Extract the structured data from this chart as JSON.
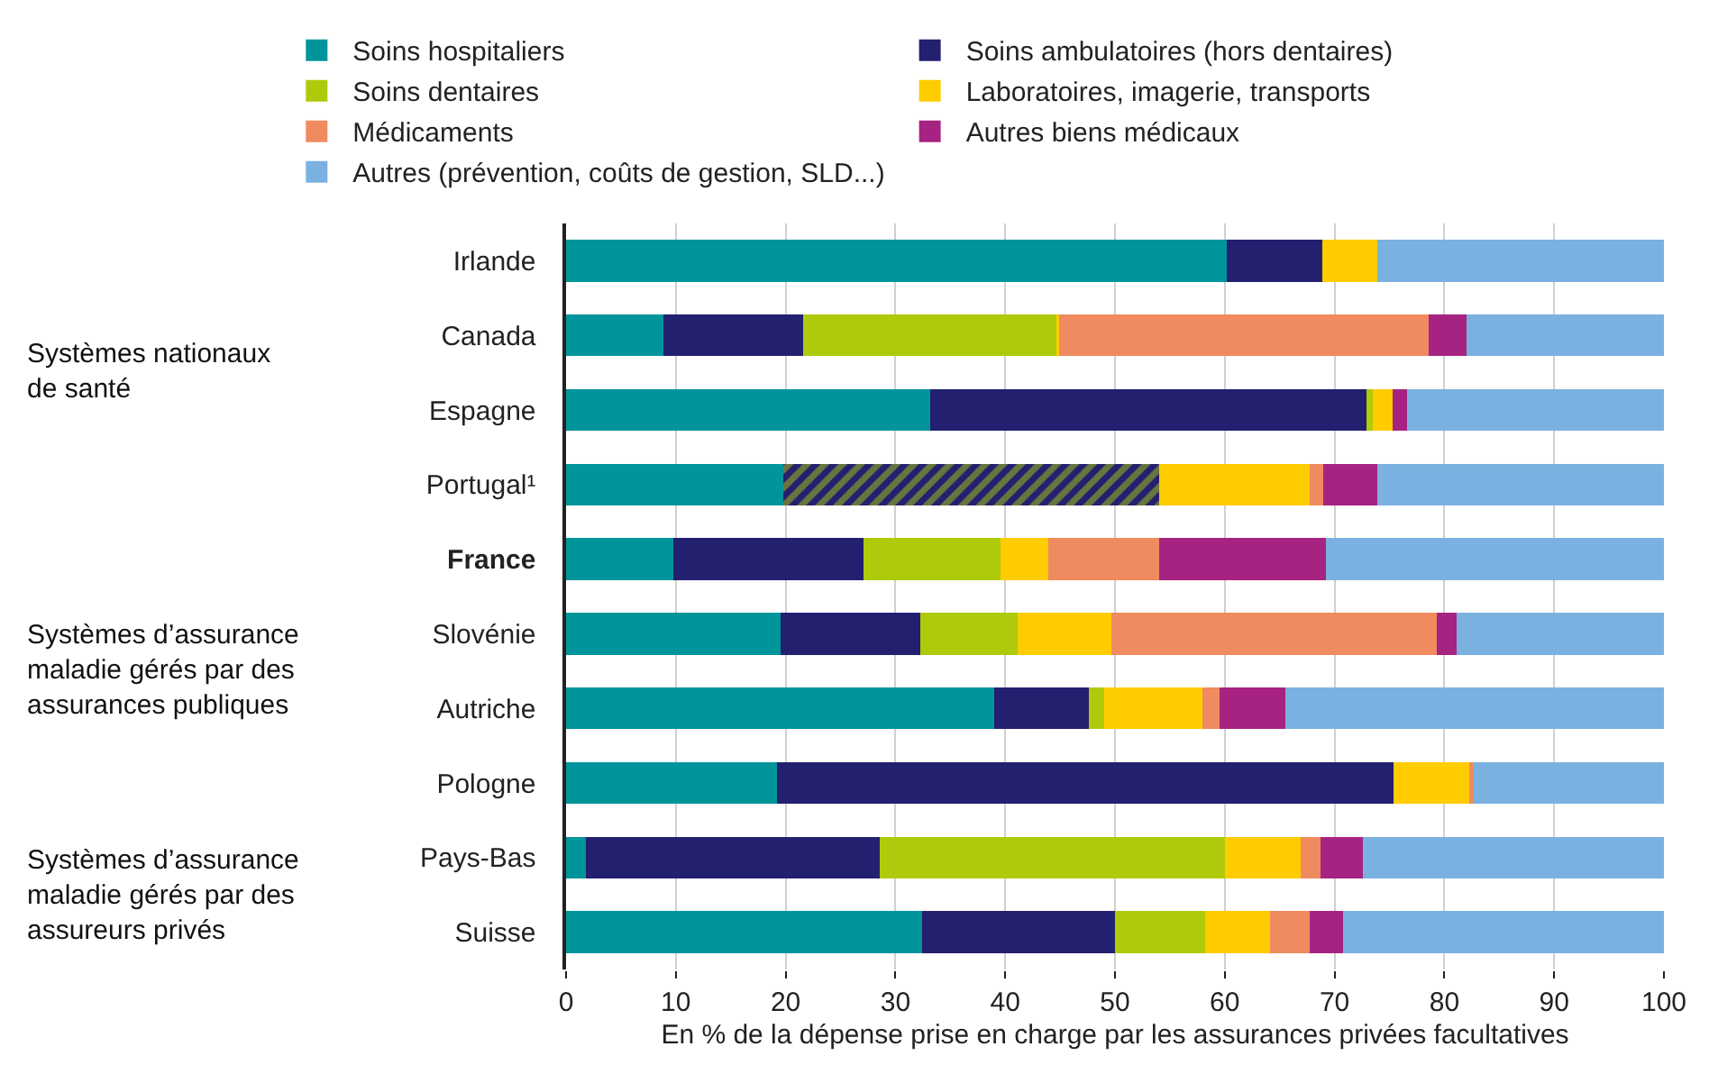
{
  "chart_data": {
    "type": "bar",
    "orientation": "horizontal",
    "stacked": true,
    "categories": [
      "Irlande",
      "Canada",
      "Espagne",
      "Portugal¹",
      "France",
      "Slovénie",
      "Autriche",
      "Pologne",
      "Pays-Bas",
      "Suisse"
    ],
    "series": [
      {
        "name": "Soins hospitaliers",
        "color": "#00959b",
        "values": [
          60.2,
          8.9,
          33.2,
          19.8,
          9.8,
          19.5,
          39.0,
          19.2,
          1.8,
          32.4
        ]
      },
      {
        "color": "#232070",
        "values": [
          null,
          null,
          null,
          34.2,
          null,
          null,
          null,
          null,
          null,
          null
        ]
      },
      {
        "name": "Soins ambulatoires (hors dentaires)",
        "color": "#232070",
        "values": [
          8.7,
          12.7,
          39.7,
          null,
          17.3,
          12.8,
          8.6,
          56.2,
          26.8,
          17.6
        ]
      },
      {
        "name": "Soins dentaires",
        "color": "#afca0b",
        "values": [
          0,
          23.1,
          0.6,
          null,
          12.5,
          8.8,
          1.4,
          0,
          31.4,
          8.2
        ]
      },
      {
        "name": "Laboratoires, imagerie, transports",
        "color": "#ffcc00",
        "values": [
          5.0,
          0.2,
          1.8,
          13.7,
          4.3,
          8.6,
          9.0,
          7.0,
          6.9,
          5.9
        ]
      },
      {
        "name": "Médicaments",
        "color": "#f08a5f",
        "values": [
          0,
          33.7,
          0,
          1.3,
          10.1,
          29.6,
          1.5,
          0.3,
          1.8,
          3.6
        ]
      },
      {
        "name": "Autres biens médicaux",
        "color": "#a72381",
        "values": [
          0,
          3.4,
          1.3,
          4.9,
          15.2,
          1.8,
          6.0,
          0,
          3.9,
          3.1
        ]
      },
      {
        "name": "Autres (prévention, coûts de gestion, SLD...)",
        "color": "#7bb1e0",
        "values": [
          26.1,
          18.0,
          23.4,
          26.1,
          30.8,
          18.9,
          34.5,
          17.3,
          27.4,
          29.2
        ]
      }
    ],
    "xlim": [
      0,
      100
    ],
    "xticks": [
      0,
      10,
      20,
      30,
      40,
      50,
      60,
      70,
      80,
      90,
      100
    ],
    "xlabel": "En % de la dépense prise en charge par les assurances privées facultatives",
    "annotations": [
      "Systèmes nationaux\nde santé",
      "Systèmes d’assurance\nmaladie gérés par des\nassurances publiques",
      "Systèmes d’assurance\nmaladie gérés par des\nassureurs privés"
    ],
    "grid": "x",
    "legend": "top"
  }
}
